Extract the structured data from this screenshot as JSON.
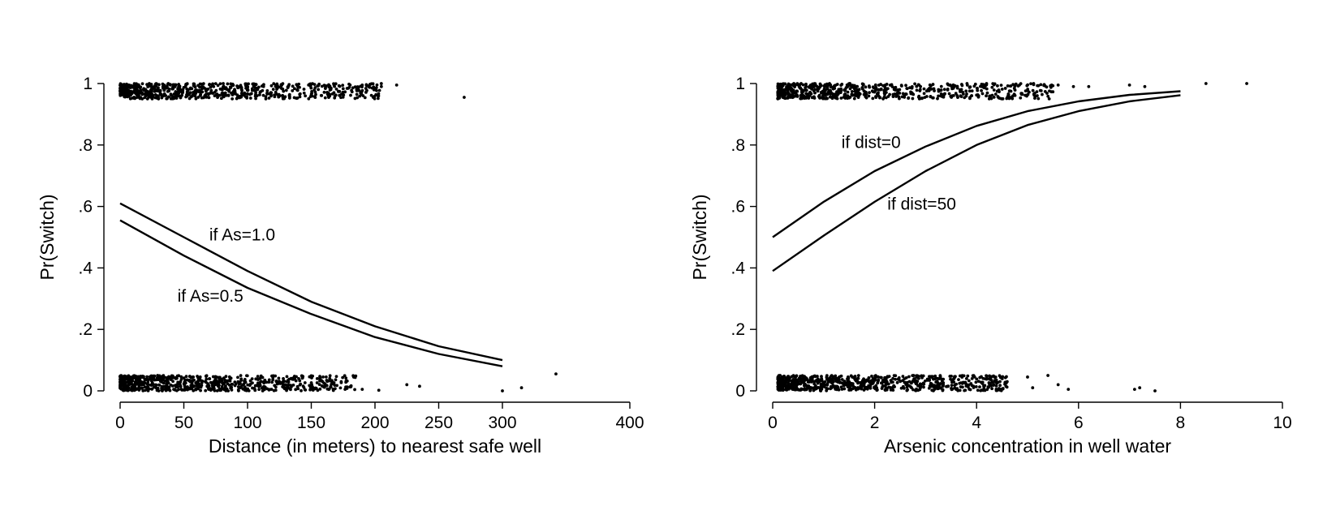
{
  "chart_data": [
    {
      "type": "line",
      "xlabel": "Distance (in meters) to nearest safe well",
      "ylabel": "Pr(Switch)",
      "xlim": [
        0,
        400
      ],
      "ylim": [
        0,
        1
      ],
      "xticks": [
        0,
        50,
        100,
        150,
        200,
        250,
        300,
        400
      ],
      "xtick_labels": [
        "0",
        "50",
        "100",
        "150",
        "200",
        "250",
        "300",
        "400"
      ],
      "yticks": [
        0,
        0.2,
        0.4,
        0.6,
        0.8,
        1
      ],
      "ytick_labels": [
        "0",
        ".2",
        ".4",
        ".6",
        ".8",
        "1"
      ],
      "grid": false,
      "series": [
        {
          "x": [
            0,
            50,
            100,
            150,
            200,
            250,
            300
          ],
          "values": [
            0.61,
            0.5,
            0.39,
            0.29,
            0.21,
            0.145,
            0.1
          ]
        },
        {
          "x": [
            0,
            50,
            100,
            150,
            200,
            250,
            300
          ],
          "values": [
            0.555,
            0.44,
            0.335,
            0.25,
            0.175,
            0.12,
            0.08
          ]
        }
      ],
      "annotations": [
        {
          "text": "if As=1.0",
          "x": 70,
          "y": 0.49
        },
        {
          "text": "if As=0.5",
          "x": 45,
          "y": 0.29
        }
      ],
      "jitter_points": {
        "y1_x_range": [
          0,
          205
        ],
        "y0_x_range": [
          0,
          185
        ],
        "y1_outliers": [
          [
            190,
            0.995
          ],
          [
            205,
            0.99
          ],
          [
            217,
            0.995
          ],
          [
            270,
            0.955
          ]
        ],
        "y0_outliers": [
          [
            190,
            0.005
          ],
          [
            203,
            0.002
          ],
          [
            225,
            0.02
          ],
          [
            235,
            0.015
          ],
          [
            300,
            0.0
          ],
          [
            315,
            0.01
          ],
          [
            342,
            0.055
          ]
        ]
      }
    },
    {
      "type": "line",
      "xlabel": "Arsenic concentration in well water",
      "ylabel": "Pr(Switch)",
      "xlim": [
        0,
        10
      ],
      "ylim": [
        0,
        1
      ],
      "xticks": [
        0,
        2,
        4,
        6,
        8,
        10
      ],
      "xtick_labels": [
        "0",
        "2",
        "4",
        "6",
        "8",
        "10"
      ],
      "yticks": [
        0,
        0.2,
        0.4,
        0.6,
        0.8,
        1
      ],
      "ytick_labels": [
        "0",
        ".2",
        ".4",
        ".6",
        ".8",
        "1"
      ],
      "grid": false,
      "series": [
        {
          "x": [
            0,
            1,
            2,
            3,
            4,
            5,
            6,
            7,
            8
          ],
          "values": [
            0.5,
            0.615,
            0.715,
            0.795,
            0.862,
            0.91,
            0.942,
            0.963,
            0.975
          ]
        },
        {
          "x": [
            0,
            1,
            2,
            3,
            4,
            5,
            6,
            7,
            8
          ],
          "values": [
            0.39,
            0.505,
            0.615,
            0.715,
            0.8,
            0.865,
            0.91,
            0.942,
            0.962
          ]
        }
      ],
      "annotations": [
        {
          "text": "if dist=0",
          "x": 1.35,
          "y": 0.79
        },
        {
          "text": "if dist=50",
          "x": 2.25,
          "y": 0.59
        }
      ],
      "jitter_points": {
        "y1_x_range": [
          0.1,
          5.5
        ],
        "y0_x_range": [
          0.1,
          4.6
        ],
        "y1_outliers": [
          [
            5.6,
            0.995
          ],
          [
            5.9,
            0.99
          ],
          [
            6.2,
            0.99
          ],
          [
            7.0,
            0.995
          ],
          [
            7.3,
            0.99
          ],
          [
            8.5,
            1.0
          ],
          [
            9.3,
            1.0
          ]
        ],
        "y0_outliers": [
          [
            4.6,
            0.03
          ],
          [
            5.0,
            0.045
          ],
          [
            5.1,
            0.01
          ],
          [
            5.4,
            0.05
          ],
          [
            5.6,
            0.02
          ],
          [
            5.8,
            0.005
          ],
          [
            7.1,
            0.005
          ],
          [
            7.2,
            0.01
          ],
          [
            7.5,
            0.0
          ]
        ]
      }
    }
  ]
}
